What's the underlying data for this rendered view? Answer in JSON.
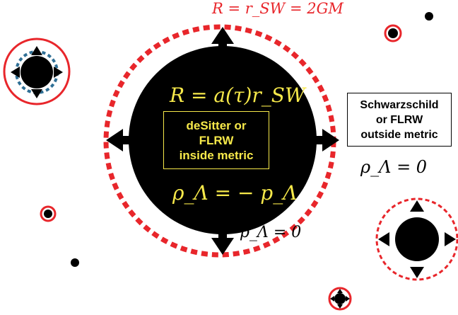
{
  "labels": {
    "horizon_radius": "R = r_SW = 2GM",
    "inner_radius": "R = a(τ)r_SW",
    "inside_metric_lines": [
      "deSitter or",
      "FLRW",
      "inside metric"
    ],
    "inside_equation": "ρ_Λ = − p_Λ",
    "outside_metric_lines": [
      "Schwarzschild",
      "or FLRW",
      "outside metric"
    ],
    "outside_density_right": "ρ_Λ = 0",
    "outside_density_bottom": "ρ_Λ = 0"
  },
  "colors": {
    "horizon": "#e8262b",
    "interior_text": "#f7e94a",
    "ball": "#000000",
    "dashed_inner": "#2f6f95",
    "background": "#ffffff"
  },
  "icons": {
    "expansion_arrows": "four-way-arrow-icon"
  }
}
